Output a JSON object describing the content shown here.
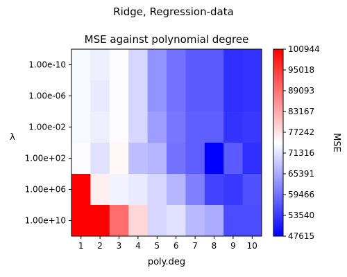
{
  "chart_data": {
    "type": "heatmap",
    "suptitle": "Ridge, Regression-data",
    "title": "MSE against polynomial degree",
    "xlabel": "poly.deg",
    "ylabel": "λ",
    "colorbar_label": "MSE",
    "x_categories": [
      "1",
      "2",
      "3",
      "4",
      "5",
      "6",
      "7",
      "8",
      "9",
      "10"
    ],
    "y_categories": [
      "1.00e-10",
      "1.00e-06",
      "1.00e-02",
      "1.00e+02",
      "1.00e+06",
      "1.00e+10"
    ],
    "colorbar_ticks": [
      "100944",
      "95018",
      "89093",
      "83167",
      "77242",
      "71316",
      "65391",
      "59466",
      "53540",
      "47615"
    ],
    "value_range": [
      47615,
      100944
    ],
    "colormap": "bwr",
    "values": [
      [
        73500,
        72500,
        74000,
        70000,
        63000,
        59500,
        57000,
        57000,
        52500,
        53000
      ],
      [
        73500,
        72000,
        74000,
        70000,
        63000,
        59500,
        57000,
        57000,
        52500,
        53000
      ],
      [
        73500,
        72500,
        74000,
        70000,
        64000,
        60000,
        57500,
        57500,
        53000,
        53500
      ],
      [
        74000,
        71000,
        75000,
        67500,
        66500,
        59500,
        57500,
        47615,
        57000,
        52500
      ],
      [
        100944,
        76000,
        73000,
        72000,
        70000,
        66500,
        61000,
        54500,
        53500,
        56000
      ],
      [
        100944,
        100944,
        89500,
        78500,
        70000,
        71000,
        67000,
        65500,
        55500,
        55500
      ]
    ]
  }
}
